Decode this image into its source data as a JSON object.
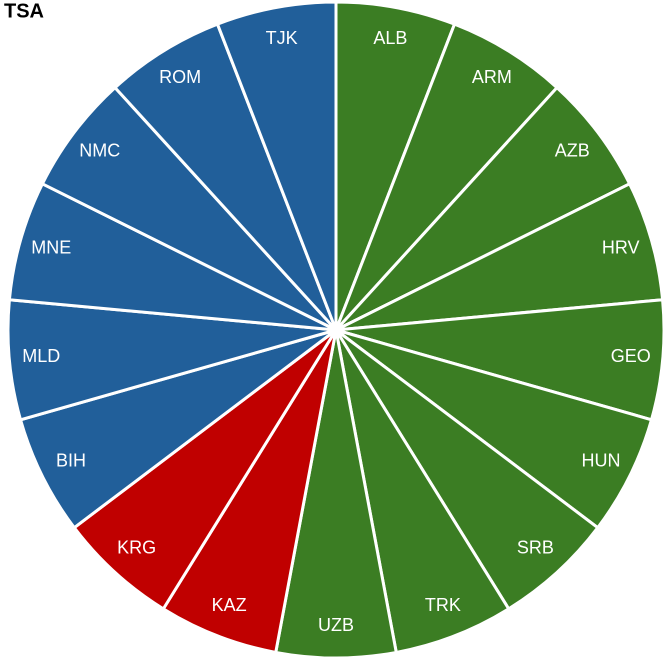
{
  "chart_data": {
    "type": "pie",
    "title": "TSA",
    "categories": [
      "ALB",
      "ARM",
      "AZB",
      "HRV",
      "GEO",
      "HUN",
      "SRB",
      "TRK",
      "UZB",
      "KAZ",
      "KRG",
      "BIH",
      "MLD",
      "MNE",
      "NMC",
      "ROM",
      "TJK"
    ],
    "values": [
      1,
      1,
      1,
      1,
      1,
      1,
      1,
      1,
      1,
      1,
      1,
      1,
      1,
      1,
      1,
      1,
      1
    ],
    "colors": [
      "#3b7d23",
      "#3b7d23",
      "#3b7d23",
      "#3b7d23",
      "#3b7d23",
      "#3b7d23",
      "#3b7d23",
      "#3b7d23",
      "#3b7d23",
      "#c00000",
      "#c00000",
      "#215f9a",
      "#215f9a",
      "#215f9a",
      "#215f9a",
      "#215f9a",
      "#215f9a"
    ]
  }
}
